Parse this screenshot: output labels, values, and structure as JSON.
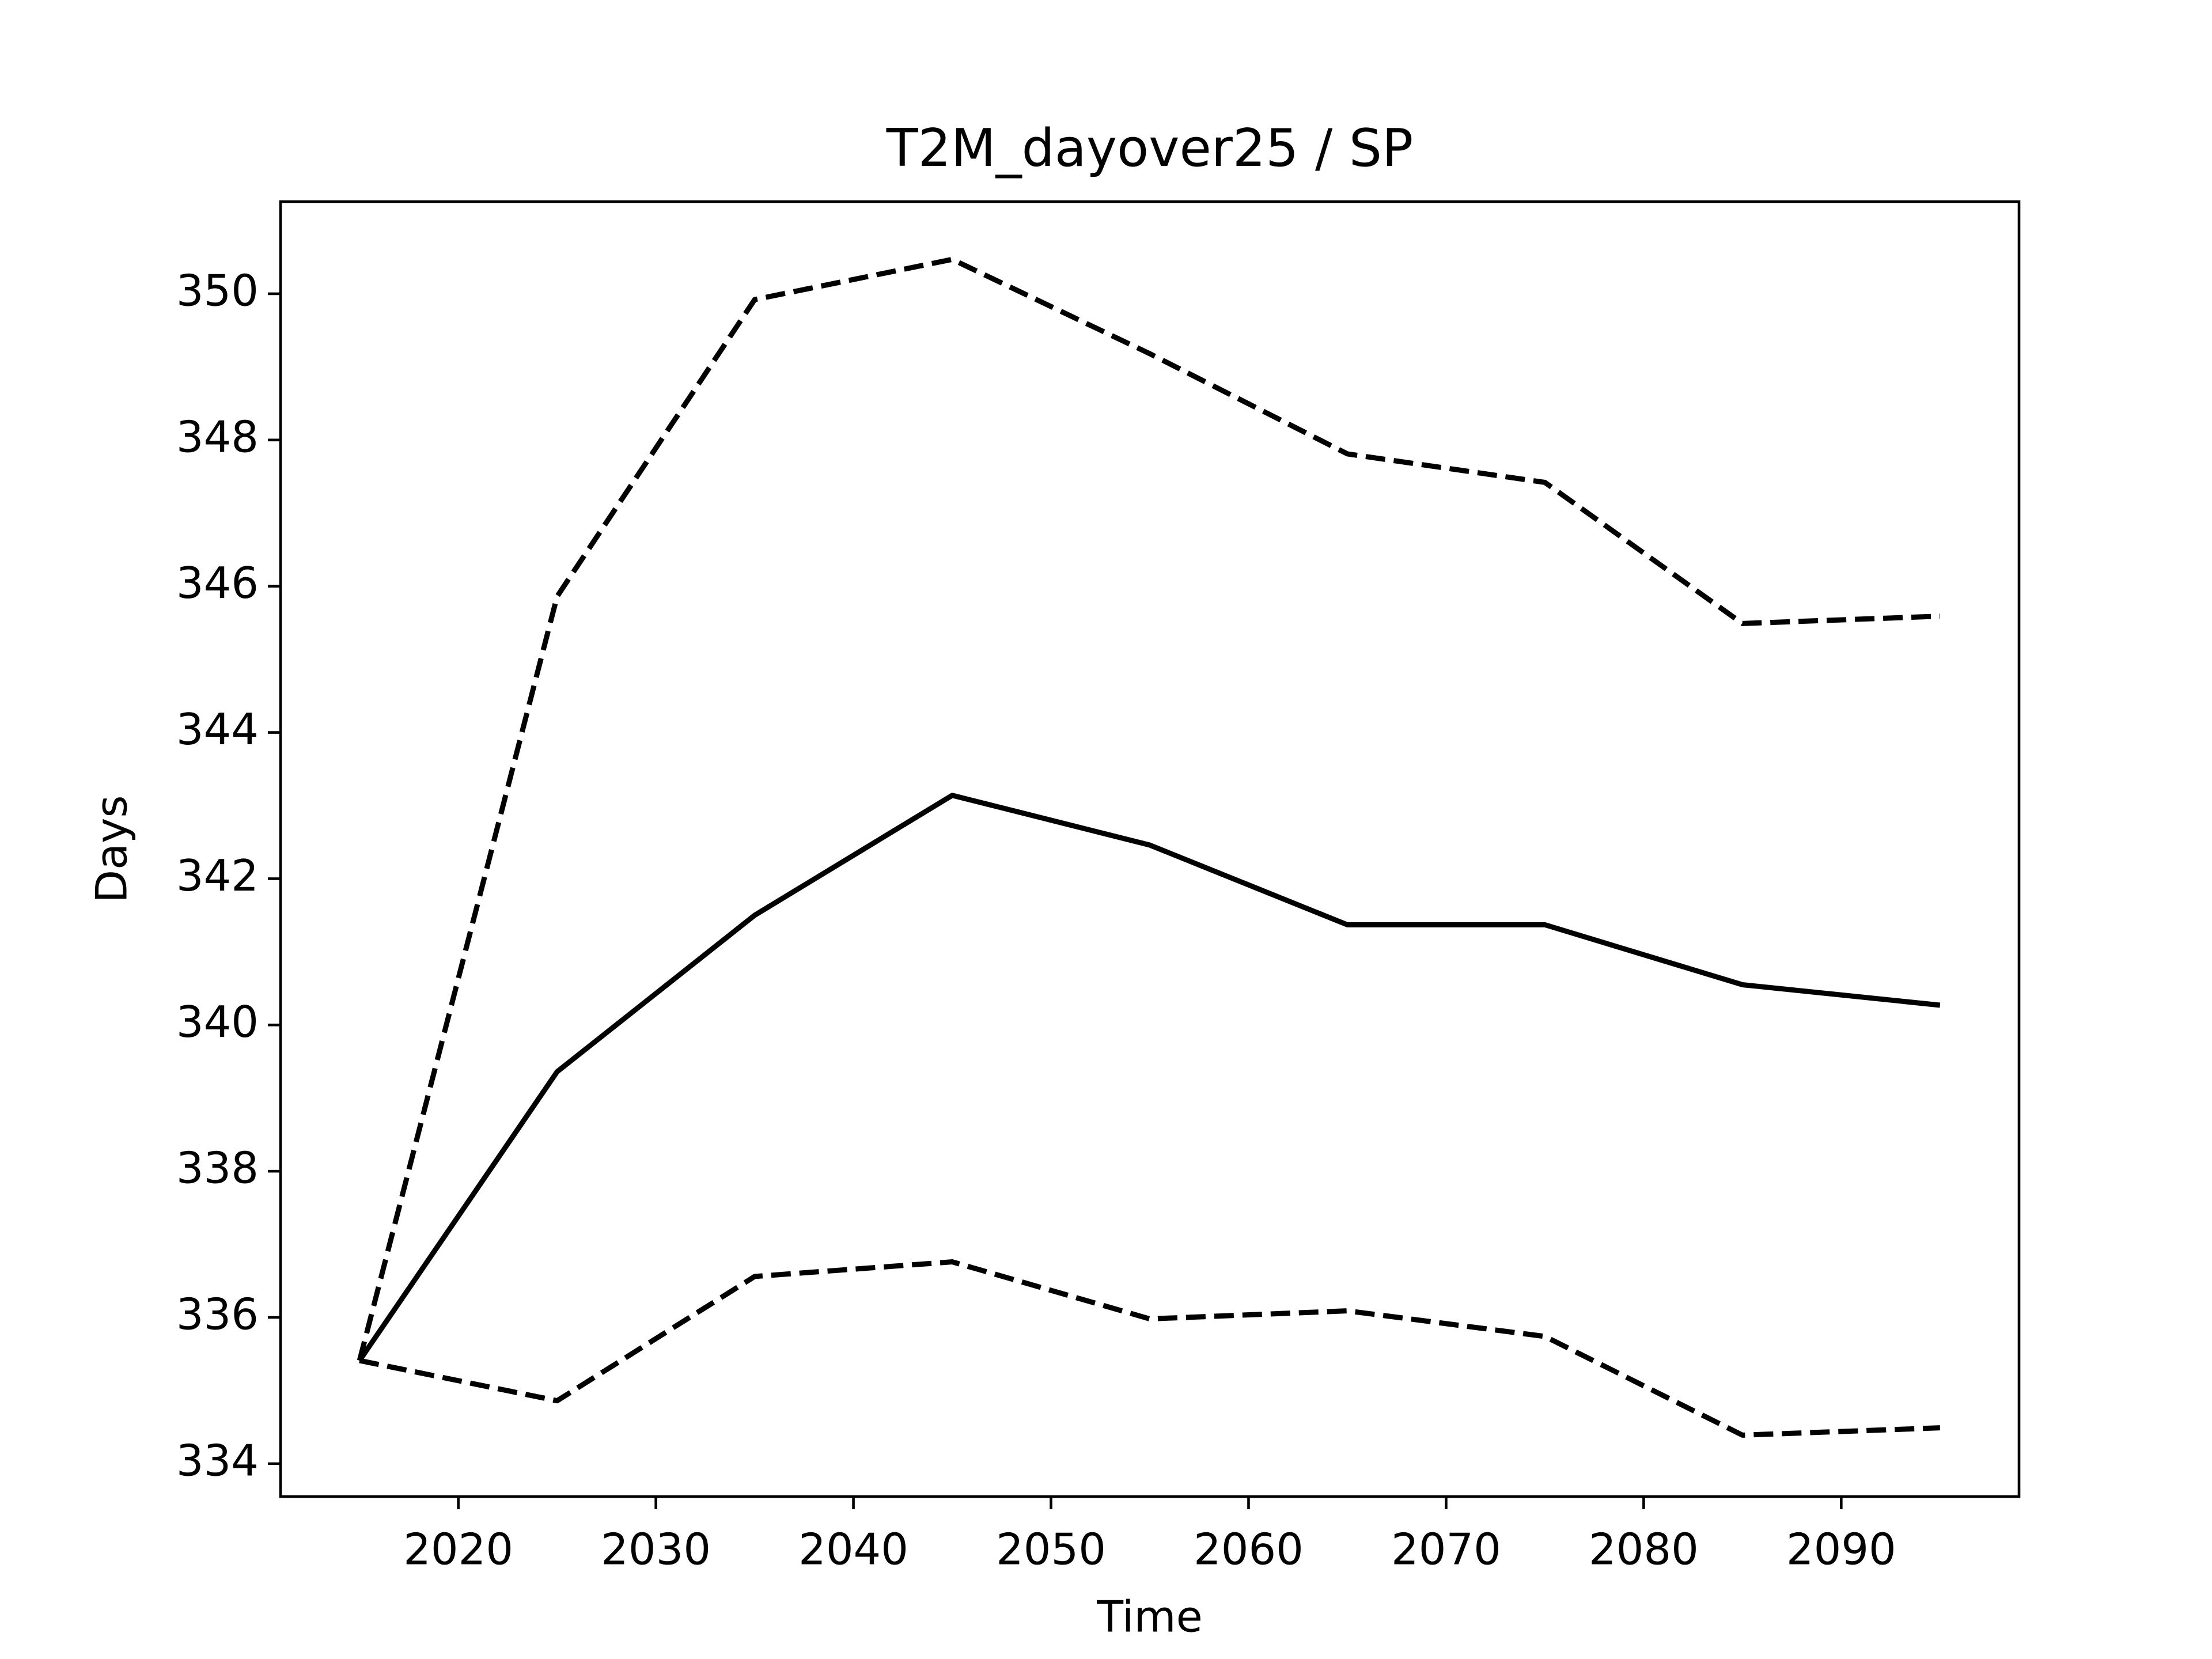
{
  "chart_data": {
    "type": "line",
    "title": "T2M_dayover25 / SP",
    "xlabel": "Time",
    "ylabel": "Days",
    "x": [
      2015,
      2025,
      2035,
      2045,
      2055,
      2065,
      2075,
      2085,
      2095
    ],
    "series": [
      {
        "color": "#000000",
        "linestyle": "solid",
        "values": [
          335.41,
          339.36,
          341.5,
          343.14,
          342.46,
          341.37,
          341.37,
          340.55,
          340.27
        ]
      },
      {
        "color": "#000000",
        "linestyle": "dashed",
        "values": [
          335.41,
          345.86,
          349.92,
          350.47,
          349.18,
          347.81,
          347.42,
          345.49,
          345.59
        ]
      },
      {
        "color": "#000000",
        "linestyle": "dashed",
        "values": [
          335.41,
          334.86,
          336.56,
          336.76,
          335.98,
          336.09,
          335.74,
          334.39,
          334.49
        ]
      }
    ],
    "xlim": [
      2011,
      2099
    ],
    "xticks": [
      2020,
      2030,
      2040,
      2050,
      2060,
      2070,
      2080,
      2090
    ],
    "ylim": [
      333.55,
      351.26
    ],
    "yticks": [
      334,
      336,
      338,
      340,
      342,
      344,
      346,
      348,
      350
    ],
    "grid": false
  }
}
